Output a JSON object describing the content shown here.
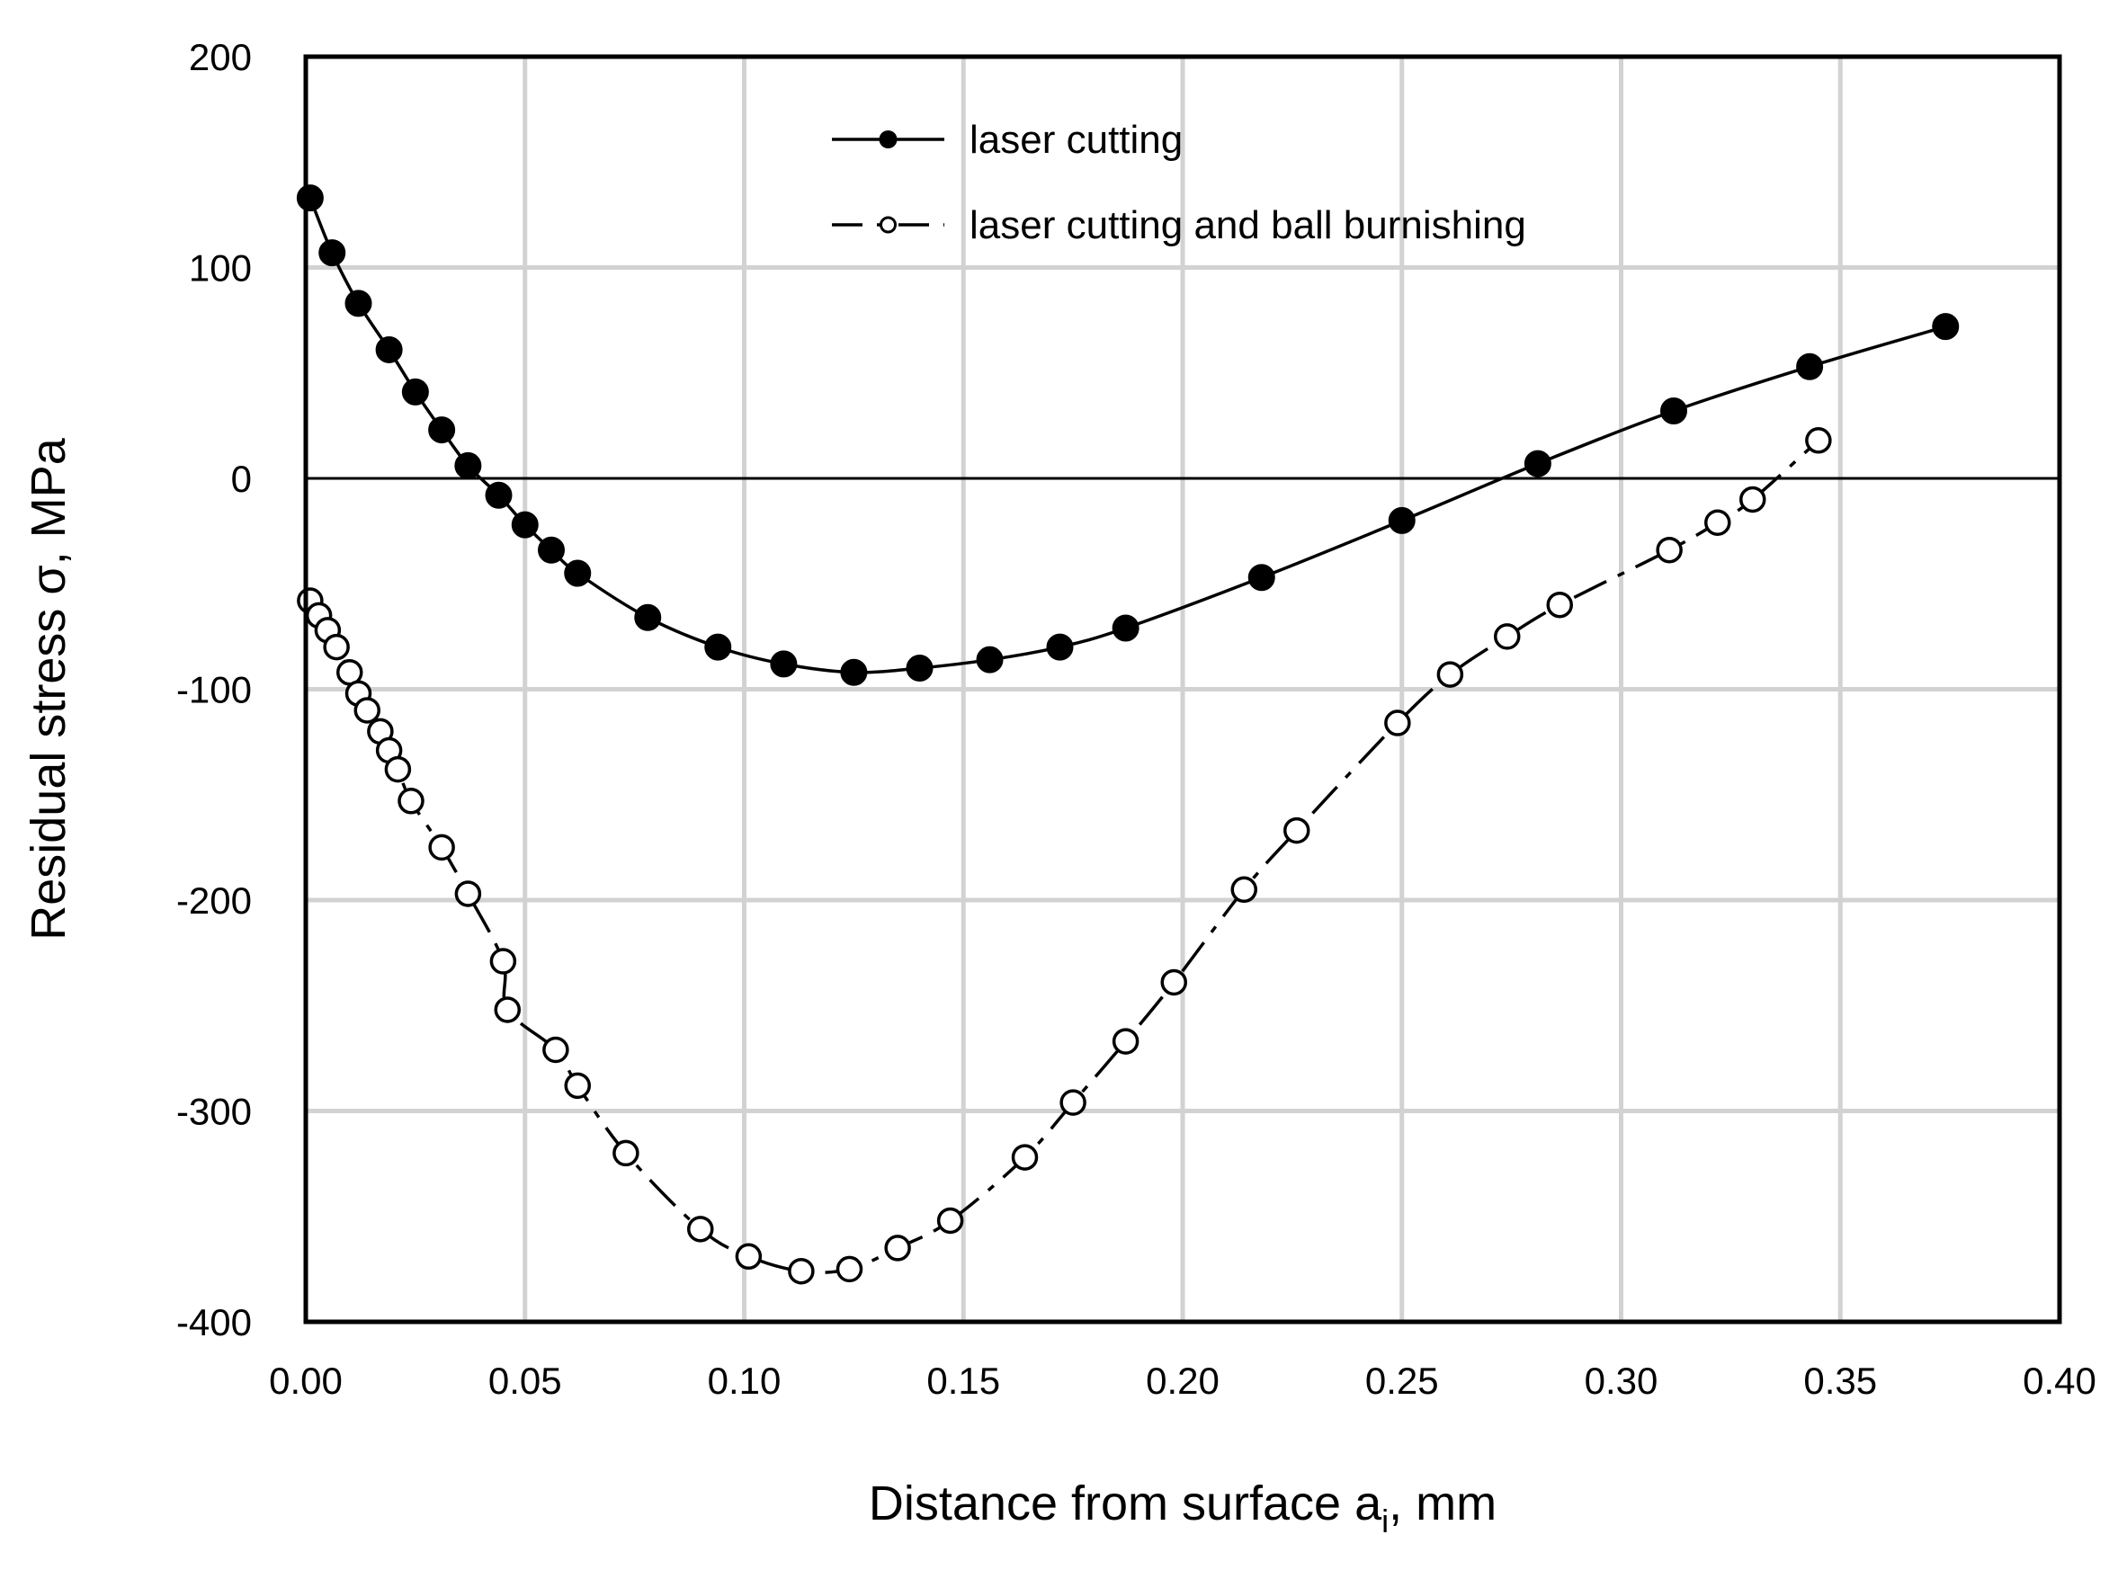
{
  "chart_data": {
    "type": "line",
    "title": "",
    "xlabel": "Distance from surface a",
    "xlabel_subscript": "i",
    "xlabel_suffix": ", mm",
    "ylabel": "Residual stress σ, MPa",
    "xlim": [
      0,
      0.4
    ],
    "ylim": [
      -400,
      200
    ],
    "x_ticks": [
      0,
      0.05,
      0.1,
      0.15,
      0.2,
      0.25,
      0.3,
      0.35,
      0.4
    ],
    "x_tick_labels": [
      "0.00",
      "0.05",
      "0.10",
      "0.15",
      "0.20",
      "0.25",
      "0.30",
      "0.35",
      "0.40"
    ],
    "y_ticks": [
      200,
      100,
      0,
      -100,
      -200,
      -300,
      -400
    ],
    "y_tick_labels": [
      "200",
      "100",
      "0",
      "-100",
      "-200",
      "-300",
      "-400"
    ],
    "grid": true,
    "zero_line": true,
    "legend_position": "top-center",
    "series": [
      {
        "name": "laser cutting",
        "marker": "filled-circle",
        "line_style": "solid",
        "color": "#000000",
        "x": [
          0.001,
          0.006,
          0.012,
          0.019,
          0.025,
          0.031,
          0.037,
          0.044,
          0.05,
          0.056,
          0.062,
          0.078,
          0.094,
          0.109,
          0.125,
          0.14,
          0.156,
          0.172,
          0.187,
          0.218,
          0.25,
          0.281,
          0.312,
          0.343,
          0.374
        ],
        "y": [
          133,
          107,
          83,
          61,
          41,
          23,
          6,
          -8,
          -22,
          -34,
          -45,
          -66,
          -80,
          -88,
          -92,
          -90,
          -86,
          -80,
          -71,
          -47,
          -20,
          7,
          32,
          53,
          72
        ]
      },
      {
        "name": "laser cutting and ball burnishing",
        "marker": "open-circle",
        "line_style": "dash-dot",
        "color": "#000000",
        "x": [
          0.001,
          0.003,
          0.005,
          0.007,
          0.01,
          0.012,
          0.014,
          0.017,
          0.019,
          0.021,
          0.024,
          0.031,
          0.037,
          0.045,
          0.046,
          0.057,
          0.062,
          0.073,
          0.09,
          0.101,
          0.113,
          0.124,
          0.135,
          0.147,
          0.164,
          0.175,
          0.187,
          0.198,
          0.214,
          0.226,
          0.249,
          0.261,
          0.274,
          0.286,
          0.311,
          0.322,
          0.33,
          0.345
        ],
        "y": [
          -58,
          -65,
          -72,
          -80,
          -92,
          -102,
          -110,
          -120,
          -129,
          -138,
          -153,
          -175,
          -197,
          -229,
          -252,
          -271,
          -288,
          -320,
          -356,
          -369,
          -376,
          -375,
          -365,
          -352,
          -322,
          -296,
          -267,
          -239,
          -195,
          -167,
          -116,
          -93,
          -75,
          -60,
          -34,
          -21,
          -10,
          18
        ]
      }
    ]
  }
}
